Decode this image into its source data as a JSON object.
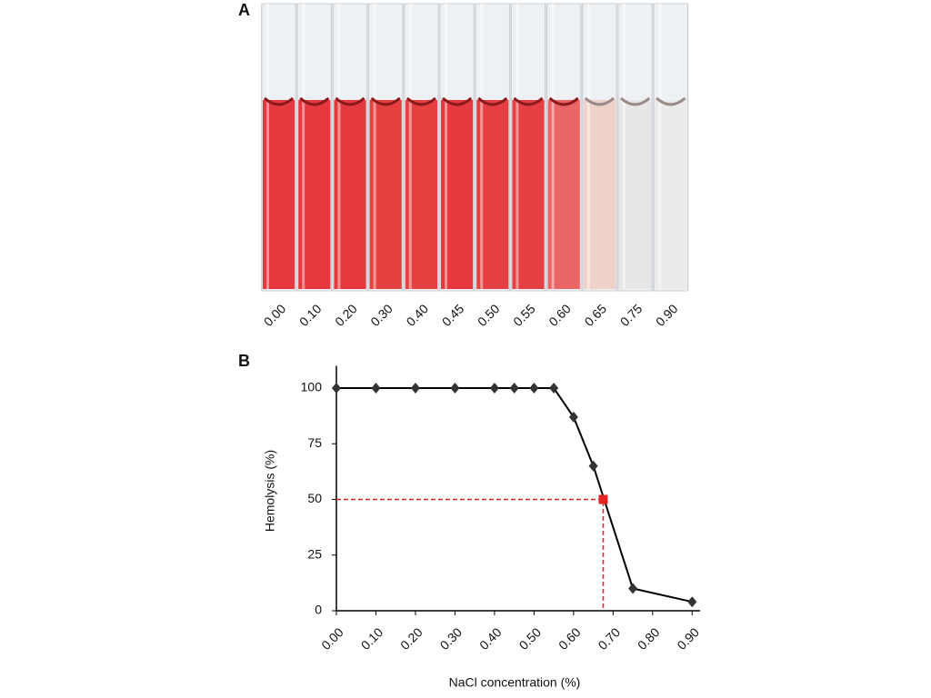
{
  "figure": {
    "panel_a": {
      "label": "A",
      "tube_labels": [
        "0.00",
        "0.10",
        "0.20",
        "0.30",
        "0.40",
        "0.45",
        "0.50",
        "0.55",
        "0.60",
        "0.65",
        "0.75",
        "0.90"
      ],
      "tube_colors": [
        "#e5393f",
        "#e5393f",
        "#e6393f",
        "#e6403f",
        "#e6403f",
        "#e5393f",
        "#e63f43",
        "#e63f43",
        "#ea6666",
        "#eed2ca",
        "#e7e7e7",
        "#ebebeb"
      ]
    }
  },
  "chart_data": {
    "type": "line",
    "panel_label": "B",
    "xlabel": "NaCl concentration  (%)",
    "ylabel": "Hemolysis (%)",
    "x": [
      0,
      0.1,
      0.2,
      0.3,
      0.4,
      0.45,
      0.5,
      0.55,
      0.6,
      0.65,
      0.75,
      0.9
    ],
    "series": [
      {
        "color": "#333333",
        "values": [
          100,
          100,
          100,
          100,
          100,
          100,
          100,
          100,
          87,
          65,
          10,
          4
        ]
      }
    ],
    "marker": {
      "x": 0.675,
      "y": 50,
      "color": "#e52421"
    },
    "xlim": [
      0,
      0.92
    ],
    "ylim": [
      0,
      110
    ],
    "xticks": [
      {
        "value": 0,
        "label": "0.00"
      },
      {
        "value": 0.1,
        "label": "0.10"
      },
      {
        "value": 0.2,
        "label": "0.20"
      },
      {
        "value": 0.3,
        "label": "0.30"
      },
      {
        "value": 0.4,
        "label": "0.40"
      },
      {
        "value": 0.5,
        "label": "0.50"
      },
      {
        "value": 0.6,
        "label": "0.60"
      },
      {
        "value": 0.7,
        "label": "0.70"
      },
      {
        "value": 0.8,
        "label": "0.80"
      },
      {
        "value": 0.9,
        "label": "0.90"
      }
    ],
    "yticks": [
      0,
      25,
      50,
      75,
      100
    ]
  }
}
